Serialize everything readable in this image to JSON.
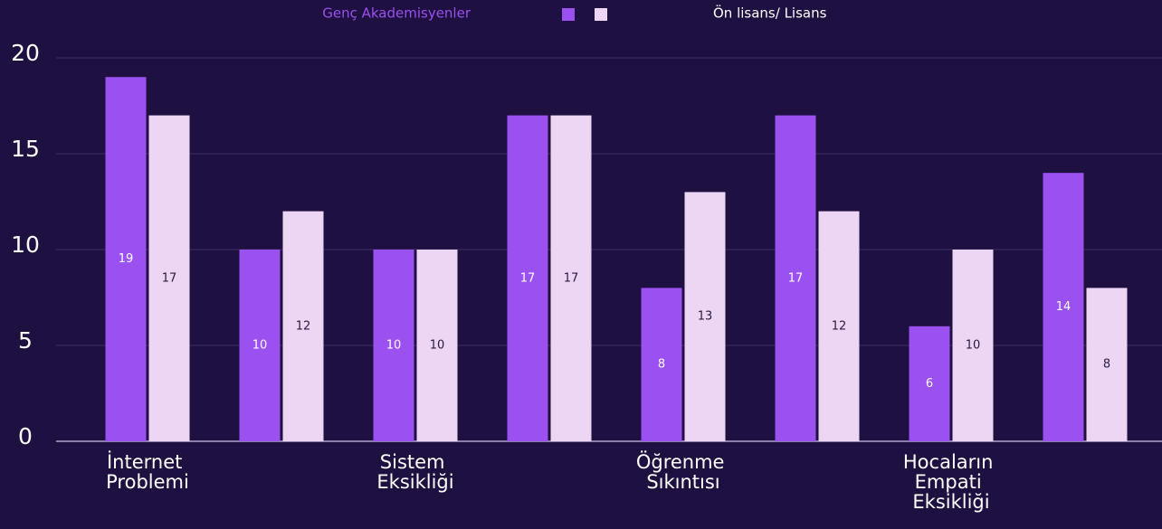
{
  "chart_data": {
    "type": "bar",
    "categories": [
      "İnternet Problemi",
      null,
      "Sistem Eksikliği",
      null,
      "Öğrenme Sıkıntısı",
      null,
      "Hocaların Empati Eksikliği",
      null
    ],
    "series": [
      {
        "name": "Genç Akademisyenler",
        "color": "#9b50f0",
        "values": [
          19,
          10,
          10,
          17,
          8,
          17,
          6,
          14
        ]
      },
      {
        "name": "Ön lisans/ Lisans",
        "color": "#ecd6f4",
        "values": [
          17,
          12,
          10,
          17,
          13,
          12,
          10,
          8
        ]
      }
    ],
    "ylim": [
      0,
      20
    ],
    "yticks": [
      0,
      5,
      10,
      15,
      20
    ],
    "grid": true,
    "legend": "top",
    "data_labels": true
  }
}
